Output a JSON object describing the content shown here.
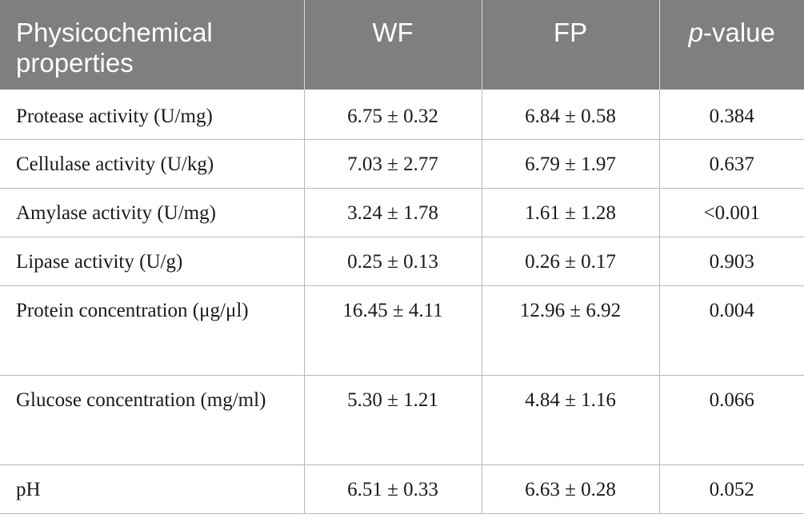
{
  "table": {
    "headers": {
      "col1": "Physicochemical properties",
      "col2": "WF",
      "col3": "FP",
      "col4_italic": "p",
      "col4_rest": "-value"
    },
    "rows": [
      {
        "property": "Protease activity (U/mg)",
        "wf": "6.75 ± 0.32",
        "fp": "6.84 ± 0.58",
        "p": "0.384"
      },
      {
        "property": "Cellulase activity (U/kg)",
        "wf": "7.03 ± 2.77",
        "fp": "6.79 ± 1.97",
        "p": "0.637"
      },
      {
        "property": "Amylase activity (U/mg)",
        "wf": "3.24 ± 1.78",
        "fp": "1.61 ± 1.28",
        "p": "<0.001"
      },
      {
        "property": "Lipase activity (U/g)",
        "wf": "0.25 ± 0.13",
        "fp": "0.26 ± 0.17",
        "p": "0.903"
      },
      {
        "property": "Protein concentration (μg/μl)",
        "wf": "16.45 ± 4.11",
        "fp": "12.96 ± 6.92",
        "p": "0.004"
      },
      {
        "property": "Glucose concentration (mg/ml)",
        "wf": "5.30 ± 1.21",
        "fp": "4.84 ± 1.16",
        "p": "0.066"
      },
      {
        "property": "pH",
        "wf": "6.51 ± 0.33",
        "fp": "6.63 ± 0.28",
        "p": "0.052"
      }
    ]
  }
}
